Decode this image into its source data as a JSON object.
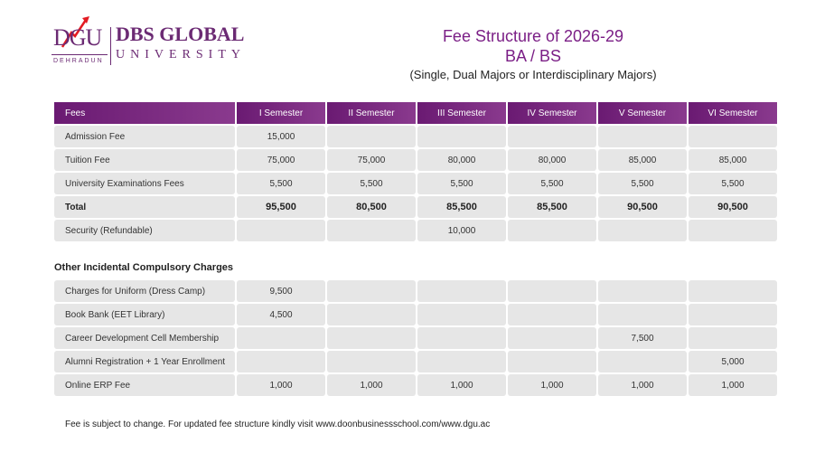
{
  "logo": {
    "mark": "DGU",
    "city": "DEHRADUN",
    "name": "DBS GLOBAL",
    "sub": "UNIVERSITY"
  },
  "header": {
    "title1": "Fee Structure of 2026-29",
    "title2": "BA / BS",
    "subtitle": "(Single, Dual Majors or Interdisciplinary Majors)"
  },
  "main_table": {
    "headers": [
      "Fees",
      "I Semester",
      "II Semester",
      "III Semester",
      "IV Semester",
      "V Semester",
      "VI Semester"
    ],
    "rows": [
      {
        "label": "Admission Fee",
        "values": [
          "15,000",
          "",
          "",
          "",
          "",
          ""
        ]
      },
      {
        "label": "Tuition Fee",
        "values": [
          "75,000",
          "75,000",
          "80,000",
          "80,000",
          "85,000",
          "85,000"
        ]
      },
      {
        "label": "University Examinations Fees",
        "values": [
          "5,500",
          "5,500",
          "5,500",
          "5,500",
          "5,500",
          "5,500"
        ]
      },
      {
        "label": "Total",
        "values": [
          "95,500",
          "80,500",
          "85,500",
          "85,500",
          "90,500",
          "90,500"
        ]
      },
      {
        "label": "Security (Refundable)",
        "values": [
          "",
          "",
          "10,000",
          "",
          "",
          ""
        ]
      }
    ]
  },
  "other": {
    "heading": "Other Incidental Compulsory Charges",
    "rows": [
      {
        "label": "Charges for Uniform (Dress Camp)",
        "values": [
          "9,500",
          "",
          "",
          "",
          "",
          ""
        ]
      },
      {
        "label": "Book Bank (EET Library)",
        "values": [
          "4,500",
          "",
          "",
          "",
          "",
          ""
        ]
      },
      {
        "label": "Career Development Cell Membership",
        "values": [
          "",
          "",
          "",
          "",
          "7,500",
          ""
        ]
      },
      {
        "label": "Alumni Registration + 1 Year Enrollment",
        "values": [
          "",
          "",
          "",
          "",
          "",
          "5,000"
        ]
      },
      {
        "label": "Online ERP Fee",
        "values": [
          "1,000",
          "1,000",
          "1,000",
          "1,000",
          "1,000",
          "1,000"
        ]
      }
    ]
  },
  "footer": "Fee is subject to change. For updated fee structure kindly visit www.doonbusinessschool.com/www.dgu.ac",
  "colors": {
    "accent": "#7b1f86",
    "cell": "#e6e6e6"
  }
}
